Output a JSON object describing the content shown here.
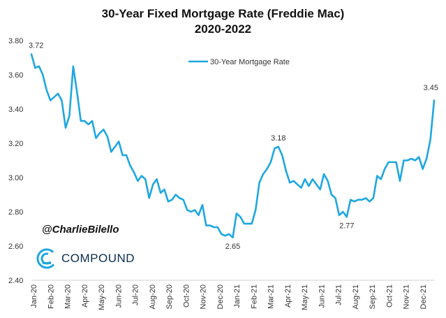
{
  "chart_data": {
    "type": "line",
    "title": "30-Year Fixed Mortgage Rate (Freddie Mac)",
    "subtitle": "2020-2022",
    "xlabel": "",
    "ylabel": "",
    "ylim": [
      2.4,
      3.8
    ],
    "yticks": [
      "2.40",
      "2.60",
      "2.80",
      "3.00",
      "3.20",
      "3.40",
      "3.60",
      "3.80"
    ],
    "xticks": [
      "Jan-20",
      "Feb-20",
      "Mar-20",
      "Apr-20",
      "May-20",
      "Jun-20",
      "Jul-20",
      "Aug-20",
      "Sep-20",
      "Oct-20",
      "Nov-20",
      "Dec-20",
      "Jan-21",
      "Feb-21",
      "Mar-21",
      "Apr-21",
      "May-21",
      "Jun-21",
      "Jul-21",
      "Aug-21",
      "Sep-21",
      "Oct-21",
      "Nov-21",
      "Dec-21"
    ],
    "grid": false,
    "legend": "top-center",
    "series": [
      {
        "name": "30-Year Mortgage Rate",
        "color": "#1ea7e1",
        "values": [
          3.72,
          3.64,
          3.65,
          3.6,
          3.51,
          3.45,
          3.47,
          3.49,
          3.45,
          3.29,
          3.36,
          3.65,
          3.5,
          3.33,
          3.33,
          3.31,
          3.33,
          3.23,
          3.26,
          3.28,
          3.24,
          3.15,
          3.18,
          3.21,
          3.13,
          3.13,
          3.07,
          3.03,
          2.98,
          3.01,
          2.99,
          2.88,
          2.96,
          2.99,
          2.91,
          2.93,
          2.86,
          2.87,
          2.9,
          2.88,
          2.87,
          2.81,
          2.8,
          2.81,
          2.78,
          2.84,
          2.72,
          2.72,
          2.71,
          2.71,
          2.67,
          2.66,
          2.67,
          2.65,
          2.79,
          2.77,
          2.73,
          2.73,
          2.73,
          2.81,
          2.97,
          3.02,
          3.05,
          3.09,
          3.17,
          3.18,
          3.13,
          3.04,
          2.97,
          2.98,
          2.96,
          2.94,
          2.99,
          2.95,
          2.99,
          2.96,
          2.93,
          3.02,
          2.98,
          2.9,
          2.88,
          2.78,
          2.8,
          2.77,
          2.87,
          2.86,
          2.87,
          2.87,
          2.88,
          2.86,
          2.88,
          3.01,
          2.99,
          3.05,
          3.09,
          3.09,
          3.09,
          2.98,
          3.1,
          3.1,
          3.11,
          3.1,
          3.12,
          3.05,
          3.11,
          3.22,
          3.45
        ]
      }
    ],
    "annotations": [
      {
        "index": 0,
        "label": "3.72"
      },
      {
        "index": 53,
        "label": "2.65"
      },
      {
        "index": 65,
        "label": "3.18"
      },
      {
        "index": 83,
        "label": "2.77"
      },
      {
        "index": 106,
        "label": "3.45"
      }
    ]
  },
  "watermark": {
    "handle": "@CharlieBilello",
    "brand": "COMPOUND",
    "brand_color": "#1ea7e1"
  }
}
